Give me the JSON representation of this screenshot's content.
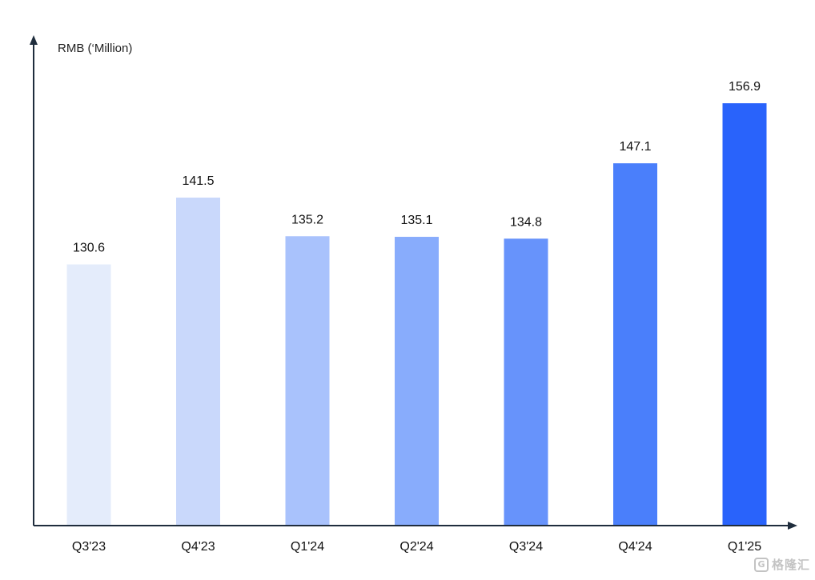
{
  "chart_data": {
    "type": "bar",
    "ylabel": "RMB (‘Million)",
    "xlabel": "",
    "title": "",
    "categories": [
      "Q3'23",
      "Q4'23",
      "Q1'24",
      "Q2'24",
      "Q3'24",
      "Q4'24",
      "Q1'25"
    ],
    "values": [
      130.6,
      141.5,
      135.2,
      135.1,
      134.8,
      147.1,
      156.9
    ],
    "value_labels": [
      "130.6",
      "141.5",
      "135.2",
      "135.1",
      "134.8",
      "147.1",
      "156.9"
    ],
    "bar_colors": [
      "#e4ecfb",
      "#c9d8fb",
      "#a9c2fc",
      "#88acfc",
      "#6793fb",
      "#4a7ffb",
      "#2963fb"
    ],
    "grid": false,
    "legend": "none"
  },
  "watermark": {
    "logo_glyph": "G",
    "text": "格隆汇"
  },
  "colors": {
    "axis": "#1f2d3d",
    "text": "#111111"
  }
}
